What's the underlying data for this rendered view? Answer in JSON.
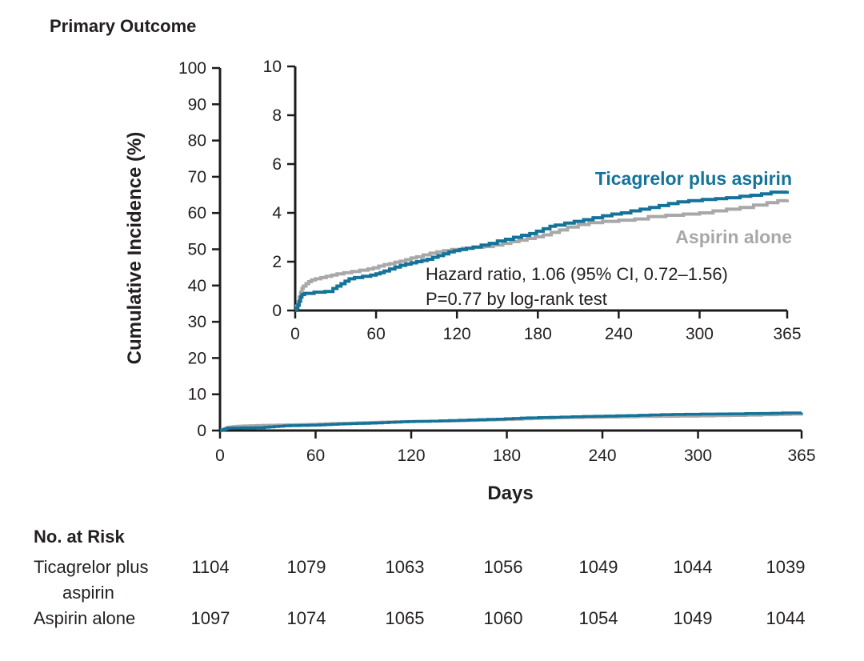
{
  "figure": {
    "title": "Primary Outcome"
  },
  "chart_data": {
    "type": "line",
    "subtype": "kaplan-meier-step",
    "title": "Primary Outcome",
    "xlabel": "Days",
    "ylabel": "Cumulative Incidence (%)",
    "x_ticks": [
      0,
      60,
      120,
      180,
      240,
      300,
      365
    ],
    "main_axis": {
      "ylim": [
        0,
        100
      ],
      "yticks": [
        0,
        10,
        20,
        30,
        40,
        50,
        60,
        70,
        80,
        90,
        100
      ],
      "xlim": [
        0,
        365
      ]
    },
    "inset_axis": {
      "ylim": [
        0,
        10
      ],
      "yticks": [
        0,
        2,
        4,
        6,
        8,
        10
      ],
      "xlim": [
        0,
        365
      ]
    },
    "grid": false,
    "legend_position": "inline-labels",
    "annotation": {
      "line1": "Hazard ratio, 1.06 (95% CI, 0.72–1.56)",
      "line2": "P=0.77 by log-rank test"
    },
    "series": [
      {
        "name": "Aspirin alone",
        "color": "#a8a8a8",
        "points": [
          [
            0,
            0
          ],
          [
            1,
            0.18
          ],
          [
            2,
            0.35
          ],
          [
            3,
            0.55
          ],
          [
            4,
            0.75
          ],
          [
            5,
            0.9
          ],
          [
            6,
            1.0
          ],
          [
            8,
            1.1
          ],
          [
            10,
            1.18
          ],
          [
            12,
            1.25
          ],
          [
            15,
            1.3
          ],
          [
            19,
            1.35
          ],
          [
            23,
            1.4
          ],
          [
            27,
            1.45
          ],
          [
            31,
            1.5
          ],
          [
            36,
            1.55
          ],
          [
            42,
            1.6
          ],
          [
            48,
            1.65
          ],
          [
            54,
            1.7
          ],
          [
            58,
            1.75
          ],
          [
            62,
            1.82
          ],
          [
            66,
            1.88
          ],
          [
            70,
            1.92
          ],
          [
            74,
            1.98
          ],
          [
            78,
            2.02
          ],
          [
            82,
            2.08
          ],
          [
            86,
            2.15
          ],
          [
            90,
            2.2
          ],
          [
            95,
            2.28
          ],
          [
            100,
            2.35
          ],
          [
            105,
            2.4
          ],
          [
            110,
            2.45
          ],
          [
            116,
            2.5
          ],
          [
            124,
            2.55
          ],
          [
            132,
            2.6
          ],
          [
            140,
            2.62
          ],
          [
            147,
            2.68
          ],
          [
            154,
            2.75
          ],
          [
            160,
            2.82
          ],
          [
            166,
            2.88
          ],
          [
            172,
            2.95
          ],
          [
            178,
            3.02
          ],
          [
            184,
            3.1
          ],
          [
            190,
            3.2
          ],
          [
            196,
            3.3
          ],
          [
            202,
            3.42
          ],
          [
            210,
            3.52
          ],
          [
            218,
            3.6
          ],
          [
            228,
            3.65
          ],
          [
            240,
            3.7
          ],
          [
            252,
            3.75
          ],
          [
            262,
            3.85
          ],
          [
            275,
            3.9
          ],
          [
            288,
            3.95
          ],
          [
            300,
            4.0
          ],
          [
            310,
            4.08
          ],
          [
            320,
            4.15
          ],
          [
            330,
            4.22
          ],
          [
            340,
            4.32
          ],
          [
            350,
            4.42
          ],
          [
            358,
            4.5
          ],
          [
            365,
            4.55
          ]
        ]
      },
      {
        "name": "Ticagrelor plus aspirin",
        "color": "#15739a",
        "points": [
          [
            0,
            0
          ],
          [
            1,
            0.1
          ],
          [
            2,
            0.22
          ],
          [
            3,
            0.38
          ],
          [
            4,
            0.55
          ],
          [
            5,
            0.65
          ],
          [
            7,
            0.7
          ],
          [
            14,
            0.75
          ],
          [
            22,
            0.78
          ],
          [
            28,
            0.9
          ],
          [
            31,
            1.0
          ],
          [
            34,
            1.1
          ],
          [
            37,
            1.2
          ],
          [
            40,
            1.3
          ],
          [
            44,
            1.35
          ],
          [
            50,
            1.4
          ],
          [
            56,
            1.45
          ],
          [
            60,
            1.5
          ],
          [
            63,
            1.55
          ],
          [
            66,
            1.62
          ],
          [
            70,
            1.7
          ],
          [
            74,
            1.78
          ],
          [
            78,
            1.85
          ],
          [
            82,
            1.9
          ],
          [
            86,
            1.95
          ],
          [
            90,
            2.0
          ],
          [
            94,
            2.05
          ],
          [
            98,
            2.1
          ],
          [
            102,
            2.18
          ],
          [
            106,
            2.25
          ],
          [
            110,
            2.32
          ],
          [
            114,
            2.4
          ],
          [
            118,
            2.45
          ],
          [
            122,
            2.5
          ],
          [
            127,
            2.55
          ],
          [
            132,
            2.6
          ],
          [
            138,
            2.68
          ],
          [
            144,
            2.75
          ],
          [
            150,
            2.85
          ],
          [
            156,
            2.92
          ],
          [
            162,
            3.0
          ],
          [
            168,
            3.08
          ],
          [
            174,
            3.15
          ],
          [
            179,
            3.25
          ],
          [
            184,
            3.35
          ],
          [
            189,
            3.45
          ],
          [
            193,
            3.5
          ],
          [
            200,
            3.58
          ],
          [
            207,
            3.65
          ],
          [
            214,
            3.72
          ],
          [
            221,
            3.8
          ],
          [
            228,
            3.88
          ],
          [
            235,
            3.95
          ],
          [
            242,
            4.0
          ],
          [
            249,
            4.08
          ],
          [
            256,
            4.15
          ],
          [
            263,
            4.22
          ],
          [
            270,
            4.3
          ],
          [
            277,
            4.38
          ],
          [
            284,
            4.45
          ],
          [
            292,
            4.5
          ],
          [
            302,
            4.55
          ],
          [
            312,
            4.58
          ],
          [
            320,
            4.62
          ],
          [
            330,
            4.68
          ],
          [
            338,
            4.72
          ],
          [
            346,
            4.78
          ],
          [
            353,
            4.85
          ],
          [
            365,
            4.9
          ]
        ]
      }
    ]
  },
  "risk_table": {
    "header": "No. at Risk",
    "rows": [
      {
        "label_lines": [
          "Ticagrelor plus",
          "aspirin"
        ],
        "values": [
          1104,
          1079,
          1063,
          1056,
          1049,
          1044,
          1039
        ]
      },
      {
        "label_lines": [
          "Aspirin alone"
        ],
        "values": [
          1097,
          1074,
          1065,
          1060,
          1054,
          1049,
          1044
        ]
      }
    ]
  },
  "colors": {
    "axis": "#1c1c1c",
    "text": "#231f20",
    "ticagrelor_blue": "#15739a",
    "aspirin_gray": "#a8a8a8"
  }
}
